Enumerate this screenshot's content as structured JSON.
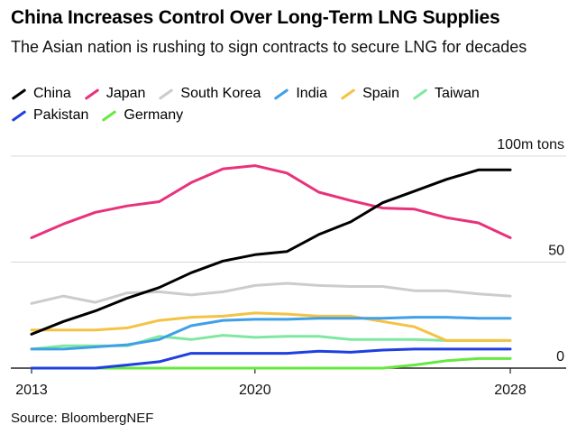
{
  "header": {
    "title": "China Increases Control Over Long-Term LNG Supplies",
    "subtitle": "The Asian nation is rushing to sign contracts to secure LNG for decades"
  },
  "source": "Source: BloombergNEF",
  "chart_data": {
    "type": "line",
    "title": "China Increases Control Over Long-Term LNG Supplies",
    "subtitle": "The Asian nation is rushing to sign contracts to secure LNG for decades",
    "xlabel": "",
    "ylabel": "m tons",
    "y_unit_label": "100m tons",
    "xlim": [
      2013,
      2028
    ],
    "ylim": [
      0,
      100
    ],
    "x_ticks": [
      {
        "value": 2013,
        "label": "2013"
      },
      {
        "value": 2020,
        "label": "2020"
      },
      {
        "value": 2028,
        "label": "2028"
      }
    ],
    "y_ticks": [
      {
        "value": 0,
        "label": "0"
      },
      {
        "value": 50,
        "label": "50"
      },
      {
        "value": 100,
        "label": "100m tons"
      }
    ],
    "grid": "horizontal",
    "legend_position": "top",
    "x": [
      2013,
      2014,
      2015,
      2016,
      2017,
      2018,
      2019,
      2020,
      2021,
      2022,
      2023,
      2024,
      2025,
      2026,
      2027,
      2028
    ],
    "series": [
      {
        "name": "China",
        "color": "#000000",
        "values": [
          16,
          22,
          27,
          33,
          38,
          45,
          50.5,
          53.5,
          55,
          63,
          69,
          78,
          83.5,
          89,
          93.5,
          93.5
        ]
      },
      {
        "name": "Japan",
        "color": "#e8327c",
        "values": [
          61.5,
          68,
          73.5,
          76.5,
          78.5,
          87.5,
          94,
          95.5,
          92,
          83,
          79,
          75.5,
          75,
          71,
          68.5,
          61.5
        ]
      },
      {
        "name": "South Korea",
        "color": "#cccccc",
        "values": [
          30.5,
          34,
          31,
          35.5,
          36,
          34.5,
          36,
          39,
          40,
          39,
          38.5,
          38.5,
          36.5,
          36.5,
          35,
          34
        ]
      },
      {
        "name": "India",
        "color": "#3fa0e8",
        "values": [
          9,
          9,
          10,
          11,
          13.5,
          20,
          22.5,
          23,
          23,
          23.5,
          23.5,
          23.5,
          24,
          24,
          23.5,
          23.5
        ]
      },
      {
        "name": "Spain",
        "color": "#f5c244",
        "values": [
          18,
          18,
          18,
          19,
          22.5,
          24,
          24.5,
          26,
          25.5,
          24.5,
          24.5,
          22,
          19.5,
          13,
          13,
          13
        ]
      },
      {
        "name": "Taiwan",
        "color": "#7fe8a0",
        "values": [
          9,
          10.5,
          10.5,
          10.5,
          15,
          13.5,
          15.5,
          14.5,
          15,
          15,
          13.5,
          13.5,
          13.5,
          13,
          13,
          13
        ]
      },
      {
        "name": "Pakistan",
        "color": "#1f3fe0",
        "values": [
          0,
          0,
          0,
          1.5,
          3,
          7,
          7,
          7,
          7,
          8,
          7.5,
          8.5,
          9,
          9,
          9,
          9
        ]
      },
      {
        "name": "Germany",
        "color": "#66e840",
        "values": [
          0,
          0,
          0,
          0,
          0,
          0,
          0,
          0,
          0,
          0,
          0,
          0,
          1.5,
          3.5,
          4.5,
          4.5
        ]
      }
    ]
  }
}
